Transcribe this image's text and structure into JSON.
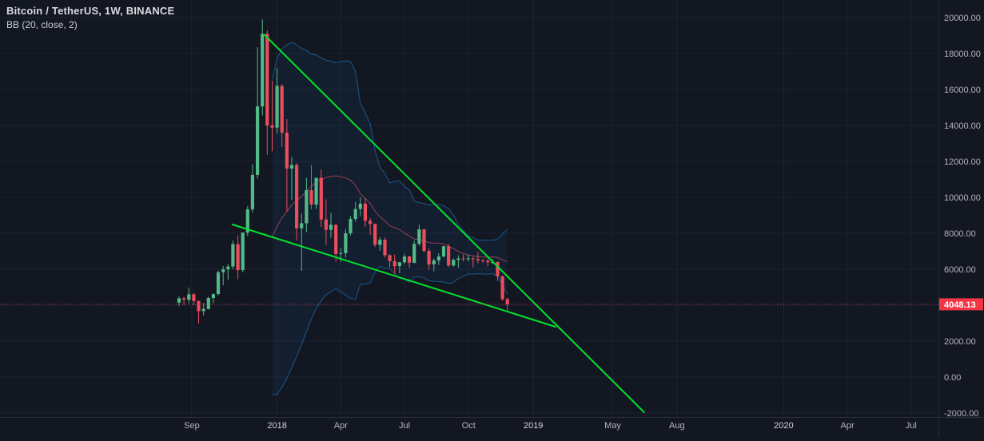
{
  "legend": {
    "symbol_title": "Bitcoin / TetherUS, 1W, BINANCE",
    "indicator_label": "BB (20, close, 2)"
  },
  "colors": {
    "background": "#131722",
    "grid": "#1d2233",
    "axis_text": "#b2b5be",
    "axis_text_major": "#d1d4dc",
    "axis_line": "#2a2e39",
    "candle_up": "#53b987",
    "candle_down": "#eb4d5c",
    "bb_band": "#2196f3",
    "bb_fill": "rgba(33,150,243,0.06)",
    "bb_basis": "#e0556a",
    "trend_line": "#00e32b",
    "last_price_line": "#f23645",
    "last_price_label_bg": "#f23645",
    "last_price_label_text": "#ffffff"
  },
  "chart_data": {
    "type": "candlestick",
    "symbol": "Bitcoin / TetherUS",
    "interval": "1W",
    "exchange": "BINANCE",
    "title": "Bitcoin / TetherUS, 1W, BINANCE",
    "indicator": {
      "name": "BB",
      "length": 20,
      "source": "close",
      "stddev": 2
    },
    "last_price": 4048.13,
    "ylim": [
      -2222,
      20978
    ],
    "y_ticks": [
      20000,
      18000,
      16000,
      14000,
      12000,
      10000,
      8000,
      6000,
      4000,
      2000,
      0,
      -2000
    ],
    "x_ticks": [
      {
        "label": "Sep",
        "index": 2.6
      },
      {
        "label": "2018",
        "index": 20,
        "major": true
      },
      {
        "label": "Apr",
        "index": 33
      },
      {
        "label": "Jul",
        "index": 46
      },
      {
        "label": "Oct",
        "index": 59.1
      },
      {
        "label": "2019",
        "index": 72.3,
        "major": true
      },
      {
        "label": "May",
        "index": 88.5
      },
      {
        "label": "Aug",
        "index": 101.6
      },
      {
        "label": "2020",
        "index": 123.4,
        "major": true
      },
      {
        "label": "Apr",
        "index": 136.4
      },
      {
        "label": "Jul",
        "index": 149.4
      }
    ],
    "candles_ohlc": [
      [
        4135,
        4480,
        3950,
        4380
      ],
      [
        4380,
        4470,
        4000,
        4310
      ],
      [
        4310,
        4980,
        4110,
        4610
      ],
      [
        4610,
        4670,
        3980,
        4230
      ],
      [
        4230,
        4260,
        2980,
        3670
      ],
      [
        3670,
        4120,
        3440,
        3790
      ],
      [
        3790,
        4470,
        3750,
        4400
      ],
      [
        4400,
        4660,
        4110,
        4620
      ],
      [
        4620,
        5920,
        4550,
        5830
      ],
      [
        5830,
        6180,
        5110,
        5990
      ],
      [
        5990,
        6290,
        5390,
        6150
      ],
      [
        6150,
        7590,
        6000,
        7400
      ],
      [
        7400,
        7890,
        5450,
        5950
      ],
      [
        5950,
        8050,
        5830,
        8040
      ],
      [
        8040,
        9520,
        7850,
        9330
      ],
      [
        9330,
        11850,
        9150,
        11250
      ],
      [
        11250,
        18350,
        11050,
        15060
      ],
      [
        15060,
        19900,
        14550,
        19100
      ],
      [
        19100,
        19300,
        12350,
        14000
      ],
      [
        14000,
        16480,
        12560,
        13880
      ],
      [
        13880,
        17180,
        13550,
        16200
      ],
      [
        16200,
        16300,
        12800,
        13600
      ],
      [
        13600,
        14350,
        9230,
        11600
      ],
      [
        11600,
        12250,
        9850,
        11800
      ],
      [
        11800,
        11900,
        7600,
        8270
      ],
      [
        8270,
        9100,
        5920,
        8560
      ],
      [
        8560,
        11080,
        8090,
        10400
      ],
      [
        10400,
        11800,
        9340,
        9590
      ],
      [
        9590,
        11100,
        9350,
        11080
      ],
      [
        11080,
        11550,
        8350,
        8770
      ],
      [
        8770,
        9900,
        7350,
        8190
      ],
      [
        8190,
        9150,
        7750,
        8470
      ],
      [
        8470,
        8500,
        6430,
        6850
      ],
      [
        6850,
        7200,
        6420,
        6900
      ],
      [
        6900,
        8230,
        6650,
        8000
      ],
      [
        8000,
        8950,
        7880,
        8800
      ],
      [
        8800,
        9750,
        8650,
        9350
      ],
      [
        9350,
        9990,
        8950,
        9650
      ],
      [
        9650,
        9950,
        8350,
        8700
      ],
      [
        8700,
        8850,
        7900,
        8520
      ],
      [
        8520,
        8550,
        7250,
        7360
      ],
      [
        7360,
        7790,
        7030,
        7640
      ],
      [
        7640,
        7770,
        6650,
        6780
      ],
      [
        6780,
        6840,
        6120,
        6450
      ],
      [
        6450,
        6820,
        5750,
        6170
      ],
      [
        6170,
        6400,
        5770,
        6390
      ],
      [
        6390,
        6850,
        6290,
        6710
      ],
      [
        6710,
        6750,
        6070,
        6360
      ],
      [
        6360,
        7590,
        6330,
        7410
      ],
      [
        7410,
        8480,
        7300,
        8220
      ],
      [
        8220,
        8250,
        6950,
        7020
      ],
      [
        7020,
        7170,
        5980,
        6270
      ],
      [
        6270,
        6600,
        5880,
        6490
      ],
      [
        6490,
        6890,
        6230,
        6710
      ],
      [
        6710,
        7300,
        6650,
        7280
      ],
      [
        7280,
        7410,
        6130,
        6210
      ],
      [
        6210,
        6600,
        6150,
        6520
      ],
      [
        6520,
        6770,
        6080,
        6600
      ],
      [
        6600,
        6830,
        6430,
        6590
      ],
      [
        6590,
        6790,
        6430,
        6600
      ],
      [
        6600,
        6700,
        6100,
        6560
      ],
      [
        6560,
        6970,
        6330,
        6490
      ],
      [
        6490,
        6580,
        6370,
        6470
      ],
      [
        6470,
        6560,
        6175,
        6390
      ],
      [
        6390,
        6580,
        6300,
        6400
      ],
      [
        6400,
        6440,
        5350,
        5600
      ],
      [
        5600,
        5650,
        4240,
        4340
      ],
      [
        4340,
        4410,
        3640,
        4048.13
      ]
    ],
    "trend_lines": [
      {
        "from": {
          "index": 17.4,
          "price": 19050
        },
        "to": {
          "index": 94.9,
          "price": -1950
        }
      },
      {
        "from": {
          "index": 10.9,
          "price": 8490
        },
        "to": {
          "index": 76.8,
          "price": 2800
        }
      }
    ]
  }
}
